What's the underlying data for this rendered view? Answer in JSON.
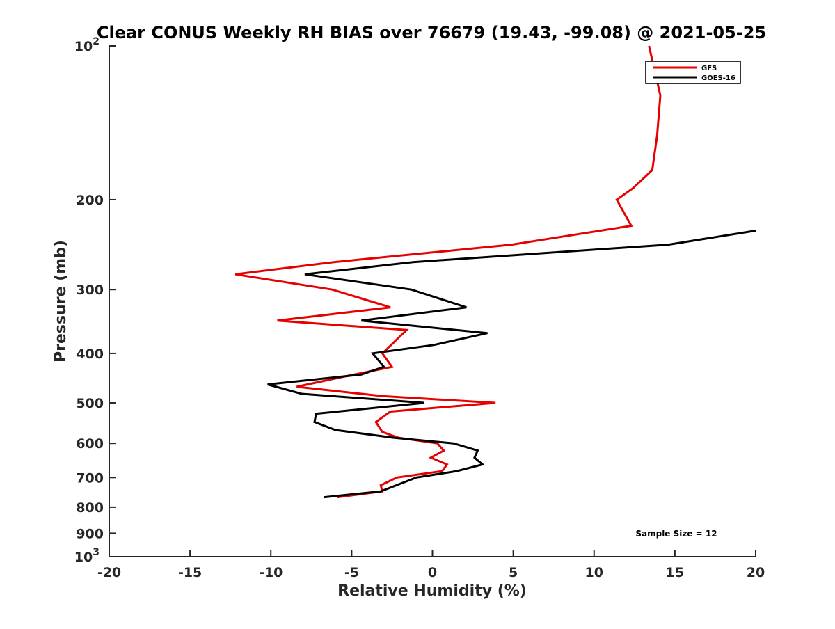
{
  "chart_data": {
    "type": "line",
    "title": "Clear CONUS Weekly RH BIAS over 76679 (19.43, -99.08) @ 2021-05-25",
    "xlabel": "Relative Humidity (%)",
    "ylabel": "Pressure (mb)",
    "xlim": [
      -20,
      20
    ],
    "ylim": [
      100,
      1000
    ],
    "y_scale": "log",
    "y_reversed": true,
    "grid": false,
    "legend_position": "top-right",
    "annotation": "Sample Size = 12",
    "x_ticks": [
      "-20",
      "-15",
      "-10",
      "-5",
      "0",
      "5",
      "10",
      "15",
      "20"
    ],
    "y_ticks": [
      {
        "value": 100,
        "base": "10",
        "exp": "2"
      },
      {
        "value": 200,
        "label": "200"
      },
      {
        "value": 300,
        "label": "300"
      },
      {
        "value": 400,
        "label": "400"
      },
      {
        "value": 500,
        "label": "500"
      },
      {
        "value": 600,
        "label": "600"
      },
      {
        "value": 700,
        "label": "700"
      },
      {
        "value": 800,
        "label": "800"
      },
      {
        "value": 900,
        "label": "900"
      },
      {
        "value": 1000,
        "base": "10",
        "exp": "3"
      }
    ],
    "series": [
      {
        "name": "GFS",
        "color": "#e60000",
        "points": [
          [
            13.4,
            100
          ],
          [
            14.1,
            125
          ],
          [
            13.9,
            150
          ],
          [
            13.6,
            175
          ],
          [
            12.4,
            190
          ],
          [
            11.4,
            200
          ],
          [
            12.3,
            225
          ],
          [
            4.9,
            245
          ],
          [
            -6.1,
            265
          ],
          [
            -12.2,
            280
          ],
          [
            -6.2,
            300
          ],
          [
            -2.6,
            325
          ],
          [
            -9.6,
            345
          ],
          [
            -1.6,
            360
          ],
          [
            -3.1,
            400
          ],
          [
            -2.5,
            425
          ],
          [
            -5.6,
            445
          ],
          [
            -8.4,
            465
          ],
          [
            -3.1,
            485
          ],
          [
            3.9,
            500
          ],
          [
            -2.6,
            520
          ],
          [
            -3.5,
            545
          ],
          [
            -3.1,
            570
          ],
          [
            -2.1,
            585
          ],
          [
            0.3,
            600
          ],
          [
            0.7,
            620
          ],
          [
            -0.1,
            640
          ],
          [
            0.9,
            660
          ],
          [
            0.6,
            680
          ],
          [
            -2.2,
            700
          ],
          [
            -3.2,
            725
          ],
          [
            -3.1,
            745
          ],
          [
            -5.9,
            765
          ]
        ]
      },
      {
        "name": "GOES-16",
        "color": "#000000",
        "points": [
          [
            20.0,
            230
          ],
          [
            14.6,
            245
          ],
          [
            -1.2,
            265
          ],
          [
            -7.9,
            280
          ],
          [
            -1.3,
            300
          ],
          [
            2.1,
            325
          ],
          [
            -4.4,
            345
          ],
          [
            3.4,
            365
          ],
          [
            0.1,
            385
          ],
          [
            -3.7,
            400
          ],
          [
            -3.0,
            425
          ],
          [
            -4.4,
            440
          ],
          [
            -10.2,
            460
          ],
          [
            -8.1,
            480
          ],
          [
            -0.5,
            500
          ],
          [
            -7.2,
            525
          ],
          [
            -7.3,
            545
          ],
          [
            -6.0,
            565
          ],
          [
            -2.4,
            585
          ],
          [
            1.3,
            600
          ],
          [
            2.8,
            620
          ],
          [
            2.6,
            640
          ],
          [
            3.1,
            660
          ],
          [
            1.5,
            680
          ],
          [
            -1.0,
            700
          ],
          [
            -3.2,
            745
          ],
          [
            -6.7,
            765
          ]
        ]
      }
    ]
  }
}
